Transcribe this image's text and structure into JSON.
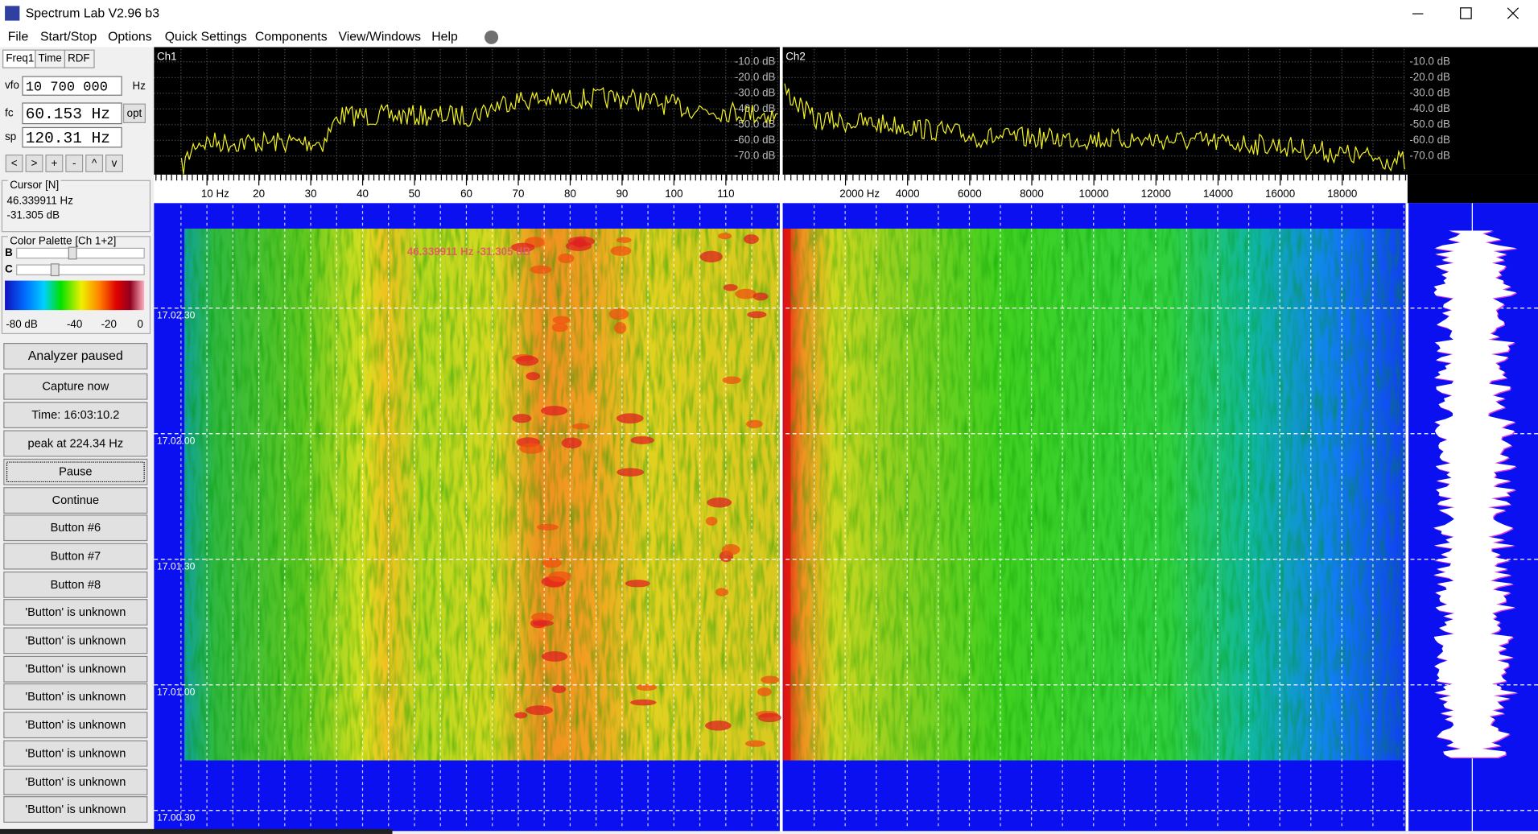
{
  "window": {
    "title": "Spectrum Lab V2.96 b3"
  },
  "menu": [
    "File",
    "Start/Stop",
    "Options",
    "Quick Settings",
    "Components",
    "View/Windows",
    "Help"
  ],
  "tabs": [
    "Freq1",
    "Time",
    "RDF"
  ],
  "frequency": {
    "vfo_label": "vfo",
    "vfo": "10 700 000",
    "vfo_unit": "Hz",
    "fc_label": "fc",
    "fc": "60.153 Hz",
    "opt": "opt",
    "sp_label": "sp",
    "sp": "120.31 Hz"
  },
  "nav_buttons": [
    "<",
    ">",
    "+",
    "-",
    "^",
    "v"
  ],
  "cursor": {
    "title": "Cursor [N]",
    "frequency": "46.339911 Hz",
    "level": "-31.305 dB"
  },
  "palette": {
    "title": "Color Palette [Ch 1+2]",
    "b_label": "B",
    "c_label": "C",
    "scale": [
      "-80 dB",
      "-40",
      "-20",
      "0"
    ]
  },
  "buttons": [
    "Analyzer paused",
    "Capture now",
    "Time:  16:03:10.2",
    "peak at 224.34 Hz",
    "Pause",
    "Continue",
    "Button #6",
    "Button #7",
    "Button #8",
    "'Button' is unknown",
    "'Button' is unknown",
    "'Button' is unknown",
    "'Button' is unknown",
    "'Button' is unknown",
    "'Button' is unknown",
    "'Button' is unknown",
    "'Button' is unknown"
  ],
  "spectrum": {
    "ch1": {
      "label": "Ch1",
      "db_ticks": [
        "-10.0 dB",
        "-20.0 dB",
        "-30.0 dB",
        "-40.0 dB",
        "-50.0 dB",
        "-60.0 dB",
        "-70.0 dB"
      ],
      "freq_ticks": [
        "10 Hz",
        "20",
        "30",
        "40",
        "50",
        "60",
        "70",
        "80",
        "90",
        "100",
        "110"
      ]
    },
    "ch2": {
      "label": "Ch2",
      "db_ticks": [
        "-10.0 dB",
        "-20.0 dB",
        "-30.0 dB",
        "-40.0 dB",
        "-50.0 dB",
        "-60.0 dB",
        "-70.0 dB"
      ],
      "freq_ticks": [
        "2000 Hz",
        "4000",
        "6000",
        "8000",
        "10000",
        "12000",
        "14000",
        "16000",
        "18000"
      ]
    }
  },
  "waterfall": {
    "cursor_readout": "46.339911 Hz  -31.305 dB",
    "time_labels": [
      "17.02.30",
      "17.02.00",
      "17.01.30",
      "17.01.00",
      "17.00.30"
    ]
  }
}
